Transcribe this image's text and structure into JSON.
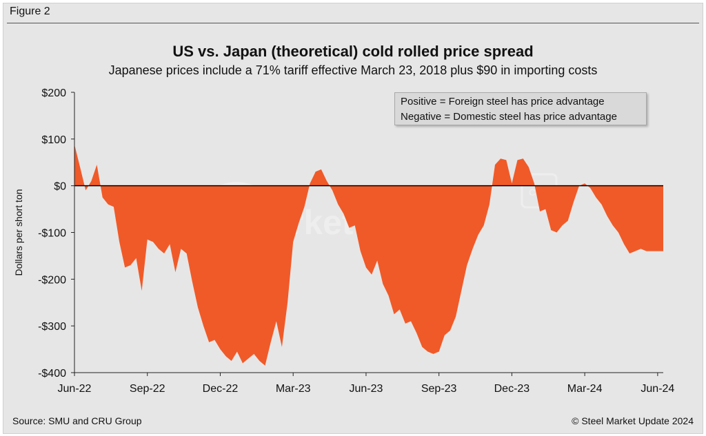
{
  "figure_label": "Figure 2",
  "source": "Source: SMU and CRU Group",
  "copyright": "© Steel Market Update 2024",
  "legend": {
    "positive": "Positive = Foreign steel has price advantage",
    "negative": "Negative = Domestic steel has price advantage"
  },
  "watermark": {
    "brand": "Steel Market Update",
    "badge": "CRU"
  },
  "colors": {
    "fill": "#f05a28",
    "zero_line": "#000000",
    "axis": "#222222"
  },
  "chart_data": {
    "type": "area",
    "title": "US vs. Japan (theoretical) cold rolled price spread",
    "subtitle": "Japanese prices include a 71% tariff effective March 23, 2018 plus $90 in importing costs",
    "xlabel": "",
    "ylabel": "Dollars per short ton",
    "ylim": [
      -400,
      200
    ],
    "yticks": [
      200,
      100,
      0,
      -100,
      -200,
      -300,
      -400
    ],
    "ytick_labels": [
      "$200",
      "$100",
      "$0",
      "-$100",
      "-$200",
      "-$300",
      "-$400"
    ],
    "xlim": [
      0,
      105
    ],
    "xticks": [
      0,
      13,
      26,
      39,
      52,
      65,
      78,
      91,
      104
    ],
    "xtick_labels": [
      "Jun-22",
      "Sep-22",
      "Dec-22",
      "Mar-23",
      "Jun-23",
      "Sep-23",
      "Dec-23",
      "Mar-24",
      "Jun-24"
    ],
    "x_unit": "weeks since early Jun-22",
    "series": [
      {
        "name": "US vs. Japan price spread",
        "x": [
          0,
          1,
          2,
          3,
          4,
          5,
          6,
          7,
          8,
          9,
          10,
          11,
          12,
          13,
          14,
          15,
          16,
          17,
          18,
          19,
          20,
          21,
          22,
          23,
          24,
          25,
          26,
          27,
          28,
          29,
          30,
          31,
          32,
          33,
          34,
          35,
          36,
          37,
          38,
          39,
          40,
          41,
          42,
          43,
          44,
          45,
          46,
          47,
          48,
          49,
          50,
          51,
          52,
          53,
          54,
          55,
          56,
          57,
          58,
          59,
          60,
          61,
          62,
          63,
          64,
          65,
          66,
          67,
          68,
          69,
          70,
          71,
          72,
          73,
          74,
          75,
          76,
          77,
          78,
          79,
          80,
          81,
          82,
          83,
          84,
          85,
          86,
          87,
          88,
          89,
          90,
          91,
          92,
          93,
          94,
          95,
          96,
          97,
          98,
          99,
          100,
          101,
          102,
          103,
          104,
          105
        ],
        "values": [
          88,
          40,
          -10,
          10,
          45,
          -25,
          -40,
          -45,
          -120,
          -175,
          -170,
          -155,
          -225,
          -115,
          -120,
          -135,
          -145,
          -125,
          -185,
          -135,
          -145,
          -205,
          -260,
          -300,
          -335,
          -330,
          -350,
          -365,
          -375,
          -355,
          -380,
          -370,
          -360,
          -375,
          -385,
          -335,
          -290,
          -345,
          -250,
          -120,
          -80,
          -45,
          5,
          30,
          35,
          10,
          -10,
          -40,
          -60,
          -90,
          -85,
          -140,
          -175,
          -190,
          -160,
          -210,
          -235,
          -275,
          -265,
          -295,
          -290,
          -315,
          -345,
          -355,
          -360,
          -355,
          -320,
          -310,
          -280,
          -225,
          -170,
          -135,
          -105,
          -85,
          -40,
          45,
          58,
          55,
          5,
          55,
          58,
          40,
          5,
          -55,
          -50,
          -95,
          -100,
          -85,
          -75,
          -35,
          0,
          5,
          -5,
          -25,
          -40,
          -65,
          -85,
          -100,
          -125,
          -145,
          -140,
          -135,
          -140,
          -140,
          -140,
          -140
        ]
      }
    ],
    "grid": false,
    "legend_position": "top-right"
  }
}
